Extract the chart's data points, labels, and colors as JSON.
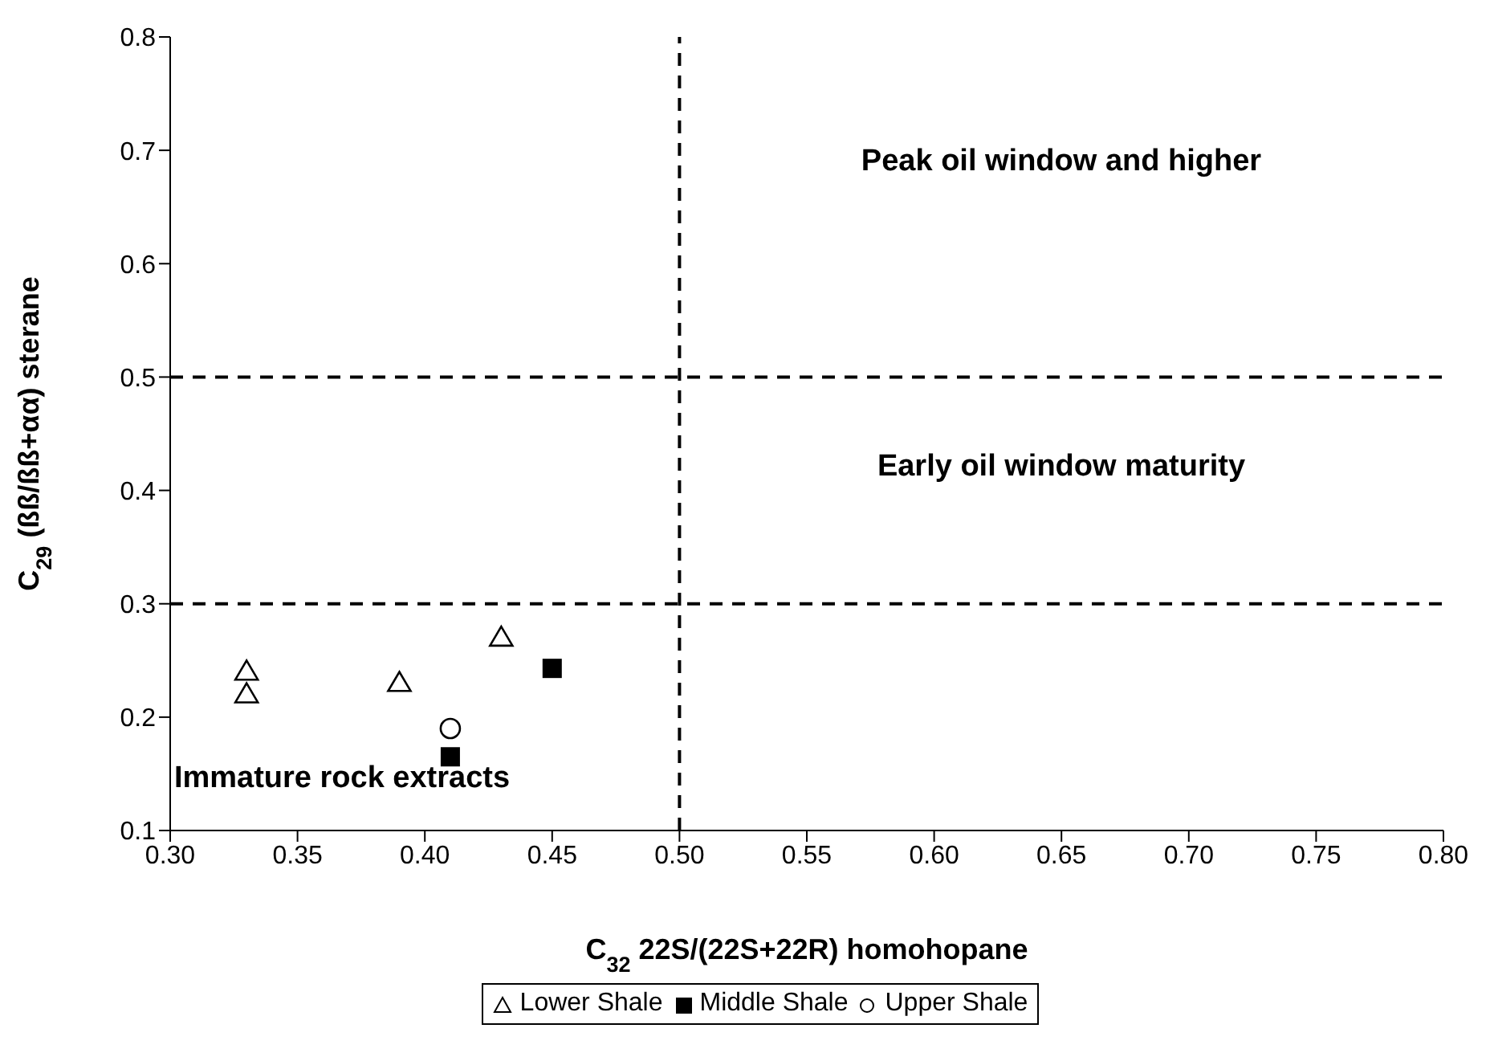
{
  "chart_data": {
    "type": "scatter",
    "xlabel": "C$_{32}$ 22S/(22S+22R) homohopane",
    "ylabel": "C$_{29}$ (ßß/ßß+αα) sterane",
    "xlim": [
      0.3,
      0.8
    ],
    "xticks": [
      {
        "value": 0.3,
        "label": "0.30"
      },
      {
        "value": 0.35,
        "label": "0.35"
      },
      {
        "value": 0.4,
        "label": "0.40"
      },
      {
        "value": 0.45,
        "label": "0.45"
      },
      {
        "value": 0.5,
        "label": "0.50"
      },
      {
        "value": 0.55,
        "label": "0.55"
      },
      {
        "value": 0.6,
        "label": "0.60"
      },
      {
        "value": 0.65,
        "label": "0.65"
      },
      {
        "value": 0.7,
        "label": "0.70"
      },
      {
        "value": 0.75,
        "label": "0.75"
      },
      {
        "value": 0.8,
        "label": "0.80"
      }
    ],
    "ylim": [
      0.1,
      0.8
    ],
    "yticks": [
      0.1,
      0.2,
      0.3,
      0.4,
      0.5,
      0.6,
      0.7,
      0.8
    ],
    "grid": false,
    "legend": "bottom",
    "series": [
      {
        "name": "Lower Shale",
        "color": "#000000",
        "marker": "triangle",
        "x": [
          0.33,
          0.33,
          0.39,
          0.43
        ],
        "values": [
          0.24,
          0.22,
          0.23,
          0.27
        ]
      },
      {
        "name": "Middle Shale",
        "color": "#000000",
        "marker": "square",
        "x": [
          0.41,
          0.45
        ],
        "values": [
          0.165,
          0.243
        ]
      },
      {
        "name": "Upper Shale",
        "color": "#000000",
        "marker": "circle",
        "x": [
          0.41
        ],
        "values": [
          0.19
        ]
      }
    ],
    "ref_lines": [
      {
        "axis": "x",
        "value": 0.5,
        "line_style": "dashed",
        "color": "#000000"
      },
      {
        "axis": "y",
        "value": 0.3,
        "line_style": "dashed",
        "color": "#000000"
      },
      {
        "axis": "y",
        "value": 0.5,
        "line_style": "dashed",
        "color": "#000000"
      }
    ],
    "annotations": [
      "Peak oil window and higher",
      "Early oil window maturity",
      "Immature rock extracts"
    ]
  }
}
